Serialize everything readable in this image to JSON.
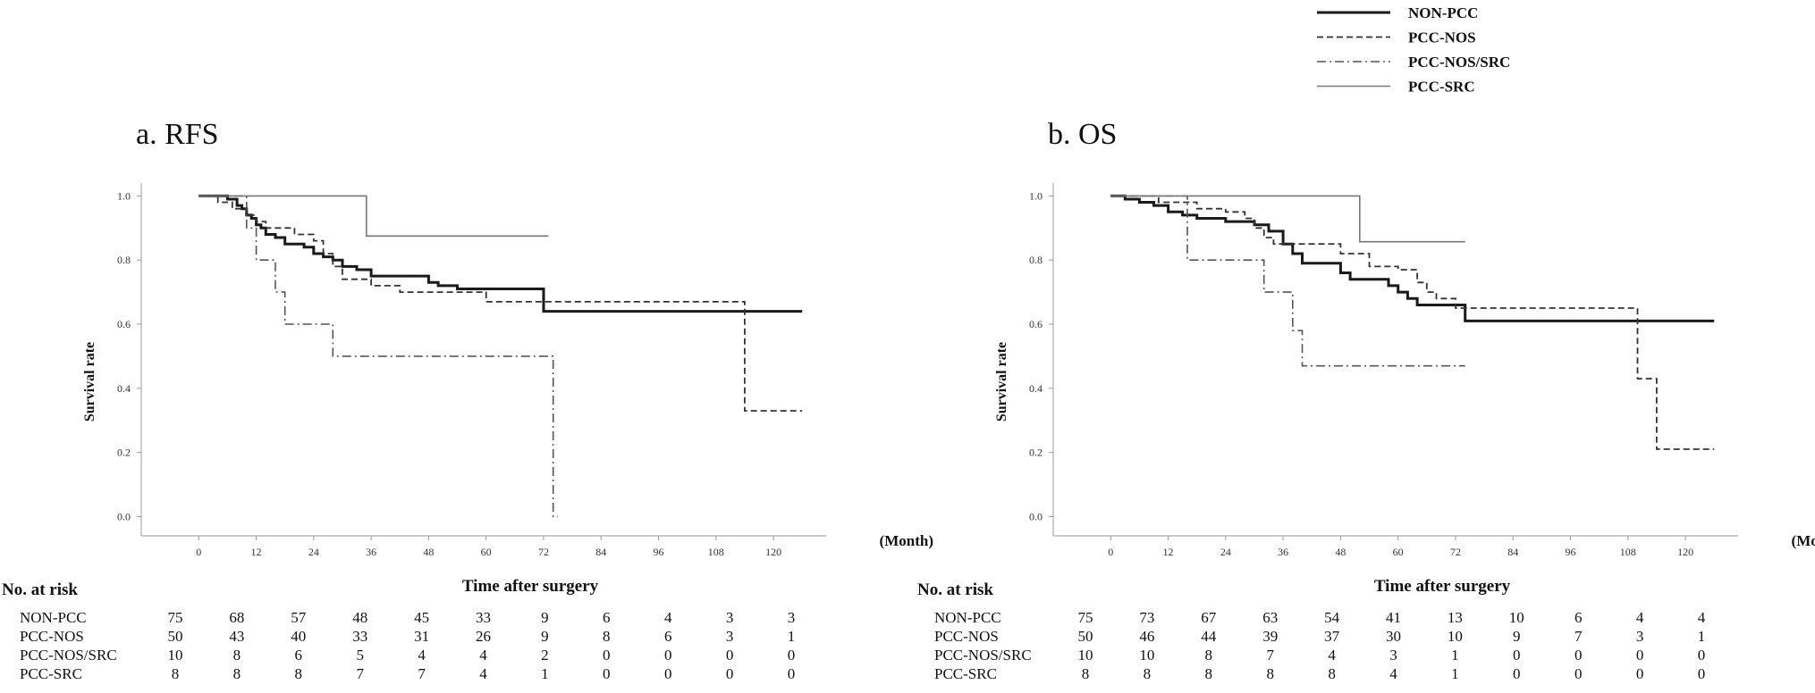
{
  "legend": {
    "placement": "top-right",
    "items": [
      {
        "label": "NON-PCC",
        "style": "thick-solid",
        "color": "#1a1a1a"
      },
      {
        "label": "PCC-NOS",
        "style": "dashed",
        "color": "#333333"
      },
      {
        "label": "PCC-NOS/SRC",
        "style": "dash-dot",
        "color": "#555555"
      },
      {
        "label": "PCC-SRC",
        "style": "thin-solid",
        "color": "#777777"
      }
    ]
  },
  "chart_data": [
    {
      "type": "line",
      "subtype": "kaplan-meier",
      "title": "a. RFS",
      "xlabel": "Time after surgery",
      "x_unit_label": "(Month)",
      "ylabel": "Survival rate",
      "xlim": [
        -12,
        131
      ],
      "ylim": [
        -0.06,
        1.04
      ],
      "x_ticks": [
        "0",
        "12",
        "24",
        "36",
        "48",
        "60",
        "72",
        "84",
        "96",
        "108",
        "120"
      ],
      "y_ticks": [
        "0.0",
        "0.2",
        "0.4",
        "0.6",
        "0.8",
        "1.0"
      ],
      "grid": false,
      "series": [
        {
          "name": "NON-PCC",
          "style": "thick-solid",
          "x": [
            0,
            6,
            8,
            9,
            10,
            11,
            12,
            13,
            14,
            16,
            18,
            20,
            22,
            24,
            26,
            28,
            30,
            33,
            36,
            42,
            48,
            50,
            54,
            60,
            66,
            72,
            80,
            96,
            110,
            126
          ],
          "y": [
            1.0,
            0.99,
            0.97,
            0.96,
            0.94,
            0.93,
            0.91,
            0.9,
            0.88,
            0.87,
            0.85,
            0.85,
            0.84,
            0.82,
            0.81,
            0.8,
            0.78,
            0.77,
            0.75,
            0.75,
            0.73,
            0.72,
            0.71,
            0.71,
            0.71,
            0.64,
            0.64,
            0.64,
            0.64,
            0.64
          ]
        },
        {
          "name": "PCC-NOS",
          "style": "dashed",
          "x": [
            0,
            4,
            7,
            10,
            12,
            14,
            20,
            24,
            26,
            28,
            30,
            36,
            42,
            48,
            60,
            66,
            80,
            110,
            114,
            126
          ],
          "y": [
            1.0,
            0.98,
            0.96,
            0.94,
            0.92,
            0.9,
            0.88,
            0.86,
            0.82,
            0.78,
            0.74,
            0.72,
            0.7,
            0.7,
            0.67,
            0.67,
            0.67,
            0.67,
            0.33,
            0.33
          ]
        },
        {
          "name": "PCC-NOS/SRC",
          "style": "dash-dot",
          "x": [
            0,
            10,
            12,
            16,
            18,
            24,
            28,
            40,
            60,
            72,
            74,
            75
          ],
          "y": [
            1.0,
            0.9,
            0.8,
            0.7,
            0.6,
            0.6,
            0.5,
            0.5,
            0.5,
            0.5,
            0.0,
            0.0
          ]
        },
        {
          "name": "PCC-SRC",
          "style": "thin-solid",
          "x": [
            0,
            20,
            35,
            50,
            60,
            73
          ],
          "y": [
            1.0,
            1.0,
            0.875,
            0.875,
            0.875,
            0.875
          ]
        }
      ],
      "risk_table": {
        "title": "No. at risk",
        "columns": [
          "0",
          "12",
          "24",
          "36",
          "48",
          "60",
          "72",
          "84",
          "96",
          "108",
          "120"
        ],
        "rows": [
          {
            "name": "NON-PCC",
            "values": [
              "75",
              "68",
              "57",
              "48",
              "45",
              "33",
              "9",
              "6",
              "4",
              "3",
              "3"
            ]
          },
          {
            "name": "PCC-NOS",
            "values": [
              "50",
              "43",
              "40",
              "33",
              "31",
              "26",
              "9",
              "8",
              "6",
              "3",
              "1"
            ]
          },
          {
            "name": "PCC-NOS/SRC",
            "values": [
              "10",
              "8",
              "6",
              "5",
              "4",
              "4",
              "2",
              "0",
              "0",
              "0",
              "0"
            ]
          },
          {
            "name": "PCC-SRC",
            "values": [
              "8",
              "8",
              "8",
              "7",
              "7",
              "4",
              "1",
              "0",
              "0",
              "0",
              "0"
            ]
          }
        ]
      }
    },
    {
      "type": "line",
      "subtype": "kaplan-meier",
      "title": "b. OS",
      "xlabel": "Time after surgery",
      "x_unit_label": "(Month)",
      "ylabel": "Survival rate",
      "xlim": [
        -12,
        131
      ],
      "ylim": [
        -0.06,
        1.04
      ],
      "x_ticks": [
        "0",
        "12",
        "24",
        "36",
        "48",
        "60",
        "72",
        "84",
        "96",
        "108",
        "120"
      ],
      "y_ticks": [
        "0.0",
        "0.2",
        "0.4",
        "0.6",
        "0.8",
        "1.0"
      ],
      "grid": false,
      "series": [
        {
          "name": "NON-PCC",
          "style": "thick-solid",
          "x": [
            0,
            3,
            6,
            9,
            12,
            15,
            18,
            21,
            24,
            27,
            30,
            33,
            36,
            38,
            40,
            44,
            48,
            50,
            54,
            58,
            60,
            62,
            64,
            66,
            68,
            70,
            74,
            90,
            110,
            126
          ],
          "y": [
            1.0,
            0.99,
            0.98,
            0.97,
            0.95,
            0.94,
            0.93,
            0.93,
            0.92,
            0.92,
            0.91,
            0.89,
            0.85,
            0.82,
            0.79,
            0.79,
            0.76,
            0.74,
            0.74,
            0.72,
            0.7,
            0.68,
            0.66,
            0.66,
            0.66,
            0.66,
            0.61,
            0.61,
            0.61,
            0.61
          ]
        },
        {
          "name": "PCC-NOS",
          "style": "dashed",
          "x": [
            0,
            10,
            18,
            24,
            28,
            30,
            32,
            34,
            40,
            48,
            54,
            60,
            64,
            66,
            68,
            72,
            90,
            108,
            110,
            112,
            114,
            126
          ],
          "y": [
            1.0,
            0.98,
            0.96,
            0.95,
            0.93,
            0.9,
            0.87,
            0.85,
            0.85,
            0.82,
            0.78,
            0.77,
            0.73,
            0.7,
            0.68,
            0.65,
            0.65,
            0.65,
            0.43,
            0.43,
            0.21,
            0.21
          ]
        },
        {
          "name": "PCC-NOS/SRC",
          "style": "dash-dot",
          "x": [
            0,
            12,
            16,
            20,
            30,
            32,
            36,
            38,
            40,
            48,
            60,
            74
          ],
          "y": [
            1.0,
            1.0,
            0.8,
            0.8,
            0.8,
            0.7,
            0.7,
            0.58,
            0.47,
            0.47,
            0.47,
            0.47
          ]
        },
        {
          "name": "PCC-SRC",
          "style": "thin-solid",
          "x": [
            0,
            20,
            40,
            52,
            60,
            74
          ],
          "y": [
            1.0,
            1.0,
            1.0,
            0.857,
            0.857,
            0.857
          ]
        }
      ],
      "risk_table": {
        "title": "No. at risk",
        "columns": [
          "0",
          "12",
          "24",
          "36",
          "48",
          "60",
          "72",
          "84",
          "96",
          "108",
          "120"
        ],
        "rows": [
          {
            "name": "NON-PCC",
            "values": [
              "75",
              "73",
              "67",
              "63",
              "54",
              "41",
              "13",
              "10",
              "6",
              "4",
              "4"
            ]
          },
          {
            "name": "PCC-NOS",
            "values": [
              "50",
              "46",
              "44",
              "39",
              "37",
              "30",
              "10",
              "9",
              "7",
              "3",
              "1"
            ]
          },
          {
            "name": "PCC-NOS/SRC",
            "values": [
              "10",
              "10",
              "8",
              "7",
              "4",
              "3",
              "1",
              "0",
              "0",
              "0",
              "0"
            ]
          },
          {
            "name": "PCC-SRC",
            "values": [
              "8",
              "8",
              "8",
              "8",
              "8",
              "4",
              "1",
              "0",
              "0",
              "0",
              "0"
            ]
          }
        ]
      }
    }
  ]
}
